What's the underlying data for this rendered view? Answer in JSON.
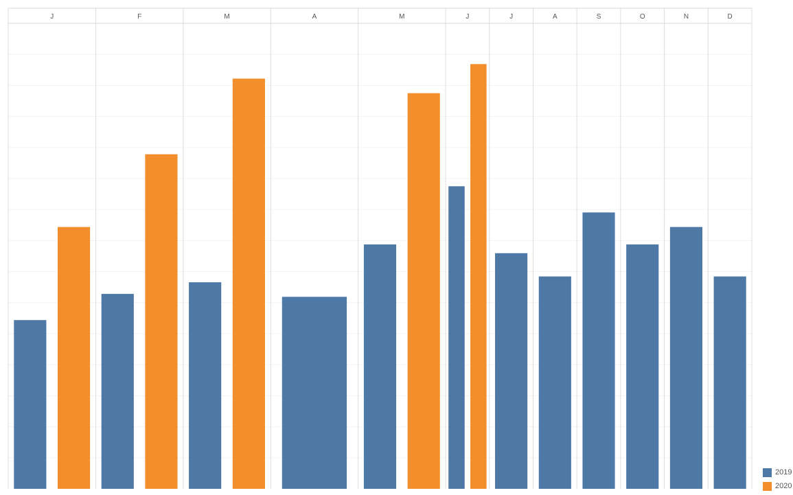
{
  "chart_data": {
    "type": "bar",
    "categories": [
      "J",
      "F",
      "M",
      "A",
      "M",
      "J",
      "J",
      "A",
      "S",
      "O",
      "N",
      "D"
    ],
    "series": [
      {
        "name": "2019",
        "color": "#4e79a7",
        "values": [
          58,
          67,
          71,
          66,
          84,
          104,
          81,
          73,
          95,
          84,
          90,
          73
        ]
      },
      {
        "name": "2020",
        "color": "#f28e2b",
        "values": [
          90,
          115,
          141,
          null,
          136,
          146,
          null,
          null,
          null,
          null,
          null,
          null
        ]
      }
    ],
    "category_widths": [
      2,
      2,
      2,
      2,
      2,
      1,
      1,
      1,
      1,
      1,
      1,
      1
    ],
    "xlabel": "",
    "ylabel": "",
    "ylim": [
      0,
      160
    ],
    "grid": true,
    "legend_position": "bottom-right"
  }
}
